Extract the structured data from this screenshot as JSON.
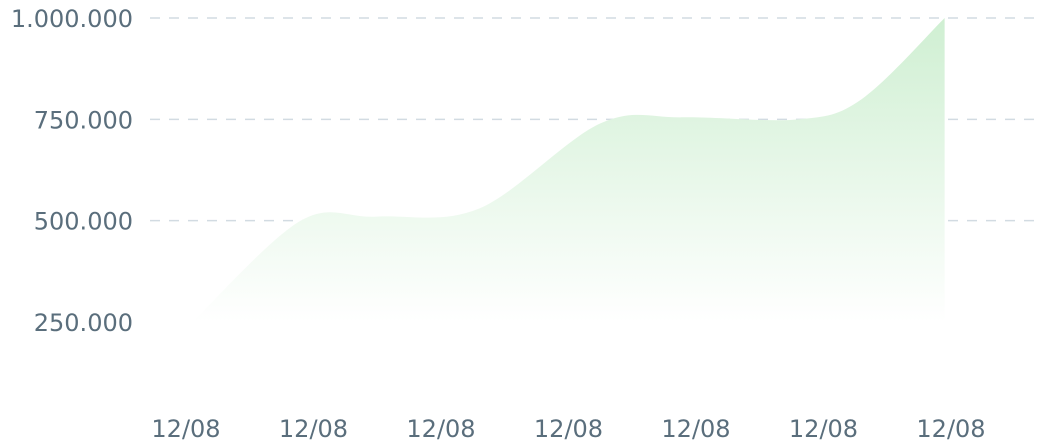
{
  "chart_data": {
    "type": "area",
    "title": "",
    "xlabel": "",
    "ylabel": "",
    "categories": [
      "12/08",
      "12/08",
      "12/08",
      "12/08",
      "12/08",
      "12/08",
      "12/08"
    ],
    "x_positions": [
      0,
      1,
      2,
      3,
      4,
      5,
      6
    ],
    "series": [
      {
        "x": [
          0.05,
          0.9,
          1.5,
          2.3,
          3.25,
          3.9,
          4.8,
          5.3,
          5.95
        ],
        "values": [
          250000,
          500000,
          510000,
          530000,
          740000,
          755000,
          750000,
          800000,
          1000000
        ]
      }
    ],
    "ylim": [
      250000,
      1000000
    ],
    "yticks": [
      250000,
      500000,
      750000,
      1000000
    ],
    "ytick_labels": [
      "250.000",
      "500.000",
      "750.000",
      "1.000.000"
    ],
    "grid": "horizontal dashed",
    "legend": "none",
    "colors": {
      "fill_top": "#cfefd2",
      "fill_bottom": "#ffffff",
      "grid": "#d2dbe2",
      "tick_text": "#5a6e7c"
    }
  }
}
